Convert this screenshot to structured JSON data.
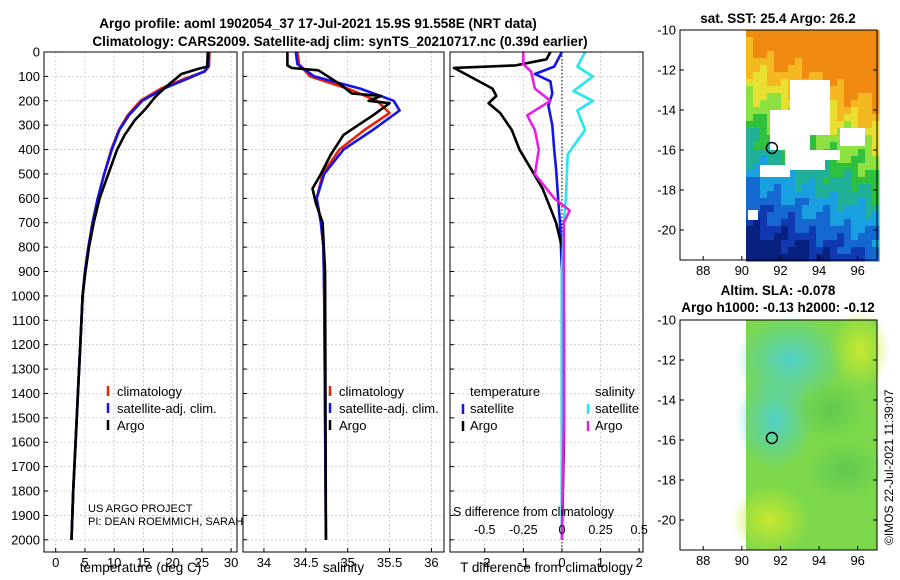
{
  "title_line1": "Argo profile: aoml 1902054_37 17-Jul-2021 15.9S 91.558E (NRT data)",
  "title_line2": "Climatology: CARS2009. Satellite-adj clim: synTS_20210717.nc (0.39d earlier)",
  "credits": [
    "US ARGO PROJECT",
    "PI: DEAN ROEMMICH, SARAH"
  ],
  "timestamp": "©IMOS 22-Jul-2021 11:39:07",
  "colors": {
    "clim": "#e8210b",
    "sat": "#1414e6",
    "argo": "#000000",
    "sal_sat": "#22e8f0",
    "sal_argo": "#e81ee0"
  },
  "chart_data": [
    {
      "type": "line",
      "name": "temperature",
      "xlabel": "temperature (deg C)",
      "ylabel": "",
      "xlim": [
        -2,
        31
      ],
      "ylim": [
        2050,
        0
      ],
      "xticks": [
        0,
        5,
        10,
        15,
        20,
        25,
        30
      ],
      "yticks": [
        0,
        100,
        200,
        300,
        400,
        500,
        600,
        700,
        800,
        900,
        1000,
        1100,
        1200,
        1300,
        1400,
        1500,
        1600,
        1700,
        1800,
        1900,
        2000
      ],
      "legend": [
        "climatology",
        "satellite-adj. clim.",
        "Argo"
      ],
      "series": [
        {
          "name": "climatology",
          "color": "#e8210b",
          "points": [
            [
              26.3,
              0
            ],
            [
              26.2,
              60
            ],
            [
              25.5,
              80
            ],
            [
              22,
              110
            ],
            [
              18,
              150
            ],
            [
              14.5,
              200
            ],
            [
              12.3,
              260
            ],
            [
              10.8,
              320
            ],
            [
              9.5,
              400
            ],
            [
              8.3,
              500
            ],
            [
              7.2,
              600
            ],
            [
              6.3,
              700
            ],
            [
              5.6,
              800
            ],
            [
              5.0,
              900
            ],
            [
              4.6,
              1000
            ],
            [
              4.2,
              1200
            ],
            [
              3.8,
              1400
            ],
            [
              3.4,
              1600
            ],
            [
              3.0,
              1800
            ],
            [
              2.7,
              2000
            ]
          ]
        },
        {
          "name": "satellite-adj. clim.",
          "color": "#1414e6",
          "points": [
            [
              26.2,
              0
            ],
            [
              26.1,
              60
            ],
            [
              25.4,
              80
            ],
            [
              22.5,
              110
            ],
            [
              18.5,
              150
            ],
            [
              14.8,
              200
            ],
            [
              12.5,
              260
            ],
            [
              10.9,
              320
            ],
            [
              9.6,
              400
            ],
            [
              8.3,
              500
            ],
            [
              7.2,
              600
            ],
            [
              6.3,
              700
            ],
            [
              5.6,
              800
            ],
            [
              5.0,
              900
            ],
            [
              4.6,
              1000
            ],
            [
              4.2,
              1200
            ],
            [
              3.8,
              1400
            ],
            [
              3.4,
              1600
            ],
            [
              3.0,
              1800
            ],
            [
              2.7,
              2000
            ]
          ]
        },
        {
          "name": "Argo",
          "color": "#000000",
          "points": [
            [
              26.0,
              0
            ],
            [
              25.9,
              60
            ],
            [
              24.5,
              68
            ],
            [
              21.5,
              90
            ],
            [
              19,
              140
            ],
            [
              17,
              185
            ],
            [
              15.5,
              230
            ],
            [
              13.5,
              280
            ],
            [
              11.8,
              340
            ],
            [
              10.5,
              400
            ],
            [
              9.0,
              500
            ],
            [
              7.5,
              600
            ],
            [
              6.5,
              700
            ],
            [
              5.7,
              800
            ],
            [
              5.1,
              900
            ],
            [
              4.6,
              1000
            ],
            [
              4.2,
              1200
            ],
            [
              3.8,
              1400
            ],
            [
              3.4,
              1600
            ],
            [
              3.0,
              1800
            ],
            [
              2.7,
              2000
            ]
          ]
        }
      ]
    },
    {
      "type": "line",
      "name": "salinity",
      "xlabel": "salinity",
      "xlim": [
        33.75,
        36.15
      ],
      "ylim": [
        2050,
        0
      ],
      "xticks": [
        34,
        34.5,
        35,
        35.5,
        36
      ],
      "legend": [
        "climatology",
        "satellite-adj. clim.",
        "Argo"
      ],
      "series": [
        {
          "name": "climatology",
          "color": "#e8210b",
          "points": [
            [
              34.4,
              0
            ],
            [
              34.42,
              50
            ],
            [
              34.55,
              100
            ],
            [
              35.0,
              150
            ],
            [
              35.35,
              200
            ],
            [
              35.5,
              250
            ],
            [
              35.2,
              320
            ],
            [
              34.9,
              400
            ],
            [
              34.7,
              500
            ],
            [
              34.63,
              600
            ],
            [
              34.68,
              700
            ],
            [
              34.71,
              800
            ],
            [
              34.72,
              1000
            ],
            [
              34.73,
              1500
            ],
            [
              34.74,
              2000
            ]
          ]
        },
        {
          "name": "satellite-adj. clim.",
          "color": "#1414e6",
          "points": [
            [
              34.38,
              0
            ],
            [
              34.4,
              50
            ],
            [
              34.6,
              100
            ],
            [
              35.15,
              150
            ],
            [
              35.55,
              200
            ],
            [
              35.62,
              240
            ],
            [
              35.3,
              320
            ],
            [
              34.95,
              400
            ],
            [
              34.72,
              500
            ],
            [
              34.63,
              600
            ],
            [
              34.68,
              700
            ],
            [
              34.71,
              800
            ],
            [
              34.72,
              1000
            ],
            [
              34.73,
              1500
            ],
            [
              34.74,
              2000
            ]
          ]
        },
        {
          "name": "Argo",
          "color": "#000000",
          "points": [
            [
              34.28,
              0
            ],
            [
              34.28,
              55
            ],
            [
              34.33,
              65
            ],
            [
              34.65,
              75
            ],
            [
              34.9,
              130
            ],
            [
              35.05,
              170
            ],
            [
              35.4,
              180
            ],
            [
              35.25,
              200
            ],
            [
              35.5,
              210
            ],
            [
              35.3,
              260
            ],
            [
              34.95,
              340
            ],
            [
              34.8,
              420
            ],
            [
              34.68,
              500
            ],
            [
              34.58,
              560
            ],
            [
              34.62,
              620
            ],
            [
              34.7,
              700
            ],
            [
              34.73,
              900
            ],
            [
              34.74,
              2000
            ]
          ]
        }
      ]
    },
    {
      "type": "line",
      "name": "difference",
      "xlabel": "T difference from climatology",
      "top_axis_label": "S difference from climatology",
      "xlim": [
        -2.9,
        2.1
      ],
      "ylim": [
        2050,
        0
      ],
      "xticks": [
        -2,
        -1,
        0,
        1,
        2
      ],
      "top_xticks": [
        "-0.5",
        "-0.25",
        "0",
        "0.25",
        "0.5"
      ],
      "legend": [
        "temperature",
        "satellite",
        "Argo",
        "salinity",
        "satellite",
        "Argo"
      ],
      "series": [
        {
          "name": "T satellite",
          "color": "#1414e6",
          "points": [
            [
              0,
              0
            ],
            [
              -0.2,
              60
            ],
            [
              -0.7,
              90
            ],
            [
              -0.3,
              120
            ],
            [
              -0.25,
              170
            ],
            [
              -0.35,
              220
            ],
            [
              -0.25,
              300
            ],
            [
              -0.2,
              400
            ],
            [
              -0.15,
              480
            ],
            [
              -0.1,
              600
            ],
            [
              -0.05,
              700
            ],
            [
              0,
              900
            ],
            [
              0,
              1500
            ],
            [
              0,
              2000
            ]
          ]
        },
        {
          "name": "T Argo",
          "color": "#000000",
          "points": [
            [
              -0.3,
              0
            ],
            [
              -0.4,
              30
            ],
            [
              -1.2,
              55
            ],
            [
              -2.8,
              65
            ],
            [
              -2.5,
              90
            ],
            [
              -1.8,
              150
            ],
            [
              -1.7,
              180
            ],
            [
              -1.9,
              210
            ],
            [
              -1.6,
              250
            ],
            [
              -1.3,
              320
            ],
            [
              -1.1,
              400
            ],
            [
              -0.8,
              480
            ],
            [
              -0.5,
              560
            ],
            [
              -0.3,
              640
            ],
            [
              -0.15,
              700
            ],
            [
              0,
              800
            ],
            [
              0.05,
              1100
            ],
            [
              0.05,
              1600
            ],
            [
              0,
              2000
            ]
          ]
        },
        {
          "name": "S satellite",
          "color": "#22e8f0",
          "points": [
            [
              0.6,
              0
            ],
            [
              0.4,
              60
            ],
            [
              0.8,
              100
            ],
            [
              0.3,
              160
            ],
            [
              0.8,
              200
            ],
            [
              0.4,
              240
            ],
            [
              0.6,
              320
            ],
            [
              0.15,
              420
            ],
            [
              0.1,
              600
            ],
            [
              0.05,
              700
            ],
            [
              0,
              900
            ],
            [
              0,
              1500
            ],
            [
              0,
              2000
            ]
          ]
        },
        {
          "name": "S Argo",
          "color": "#e81ee0",
          "points": [
            [
              -1.0,
              0
            ],
            [
              -1.0,
              50
            ],
            [
              -0.8,
              80
            ],
            [
              -0.7,
              150
            ],
            [
              -0.3,
              200
            ],
            [
              -0.9,
              260
            ],
            [
              -0.7,
              320
            ],
            [
              -0.6,
              400
            ],
            [
              -0.7,
              500
            ],
            [
              -0.2,
              600
            ],
            [
              0.2,
              650
            ],
            [
              0.05,
              700
            ],
            [
              0.05,
              900
            ],
            [
              0.05,
              1500
            ],
            [
              0,
              2000
            ]
          ]
        }
      ]
    },
    {
      "type": "heatmap",
      "name": "sst-map",
      "title": "sat. SST: 25.4 Argo: 26.2",
      "xticks": [
        88,
        90,
        92,
        94,
        96
      ],
      "yticks": [
        -10,
        -12,
        -14,
        -16,
        -18,
        -20
      ],
      "xlim": [
        86.8,
        97
      ],
      "ylim": [
        -21.5,
        -10
      ],
      "marker": [
        91.558,
        -15.9
      ]
    },
    {
      "type": "heatmap",
      "name": "sla-map",
      "title_line1": "Altim. SLA: -0.078",
      "title_line2": "Argo h1000: -0.13 h2000: -0.12",
      "xticks": [
        88,
        90,
        92,
        94,
        96
      ],
      "yticks": [
        -10,
        -12,
        -14,
        -16,
        -18,
        -20
      ],
      "xlim": [
        86.8,
        97
      ],
      "ylim": [
        -21.5,
        -10
      ],
      "marker": [
        91.558,
        -15.9
      ]
    }
  ]
}
